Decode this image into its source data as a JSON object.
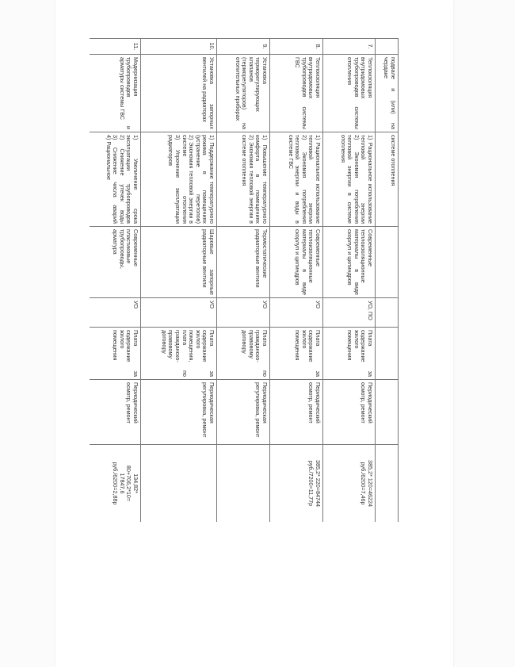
{
  "table": {
    "rows": [
      {
        "num": "",
        "name": "подвале и (или) на чердаке",
        "effect": [
          "системе отопления"
        ],
        "materials": "",
        "executor": "",
        "funding": "",
        "method": "",
        "cost": []
      },
      {
        "num": "7.",
        "name": "Теплоизоляция внутридомовых трубопроводов системы отопления",
        "effect": [
          "1) Рациональное использование тепловой энергии",
          "2) Экономия потребления тепловой энергии в системе отопления"
        ],
        "materials": "Современные теплоизоляционные материалы в виде скорлуп и цилиндров",
        "executor": "УО, ПО",
        "funding": "Плата за содержание жилого помещения",
        "method": "Периодический осмотр, ремонт",
        "cost": [
          "385,2* 120=46224",
          "руб./6200=7,46р"
        ]
      },
      {
        "num": "8.",
        "name": "Теплоизоляция внутридомовых трубопроводов системы ГВС",
        "effect": [
          "1) Рациональное использование тепловой энергии",
          "2) Экономия потребления тепловой энергии и воды в системе ГВС"
        ],
        "materials": "Современные теплоизоляционные материалы в виде скорлуп и цилиндров",
        "executor": "УО",
        "funding": "Плата за содержание жилого помещения",
        "method": "Периодический осмотр, ремонт",
        "cost": [
          "385,2* 220=84744",
          "руб./7200=11,77р"
        ]
      },
      {
        "num": "9.",
        "name": "Установка терморегулирующих клапанов (терморегуляторов) на отопительных приборах",
        "effect": [
          "1) Повышение температурного комфорта в помещениях",
          "2) Экономия тепловой энергии в системе отопления"
        ],
        "materials": "Термостатические радиаторные вентили",
        "executor": "УО",
        "funding": "Плата по гражданско-правовому договору",
        "method": "Периодическая регулировка, ремонт",
        "cost": []
      },
      {
        "num": "10.",
        "name": "Установка запорных вентилей на радиаторах",
        "effect": [
          "1) Поддержание температурного режима в помещениях (устранение перетопов)",
          "2) Экономия тепловой энергии в системе отопления",
          "3) Упрочение эксплуатации радиаторов"
        ],
        "materials": "Шаровые запорные радиаторные вентили",
        "executor": "УО",
        "funding": "Плата за содержание жилого помещения, плата по гражданско-правовому договору",
        "method": "Периодическая регулировка, ремонт",
        "cost": []
      },
      {
        "num": "11.",
        "name": "Модернизация трубопроводов и арматуры системы ГВС",
        "effect": [
          "1) Увеличение срока эксплуатации трубопроводов",
          "2) Снижение утечек воды",
          "3) Снижение числа аварий",
          "4) Рациональное"
        ],
        "materials": "Современные пластиковые трубопроводы, арматура",
        "executor": "УО",
        "funding": "Плата за содержание жилого помещения",
        "method": "Периодический осмотр, ремонт",
        "cost": [
          "134,82*",
          "80+706,2*10=",
          "17847,6",
          "руб./6200=2,88р"
        ]
      }
    ]
  }
}
